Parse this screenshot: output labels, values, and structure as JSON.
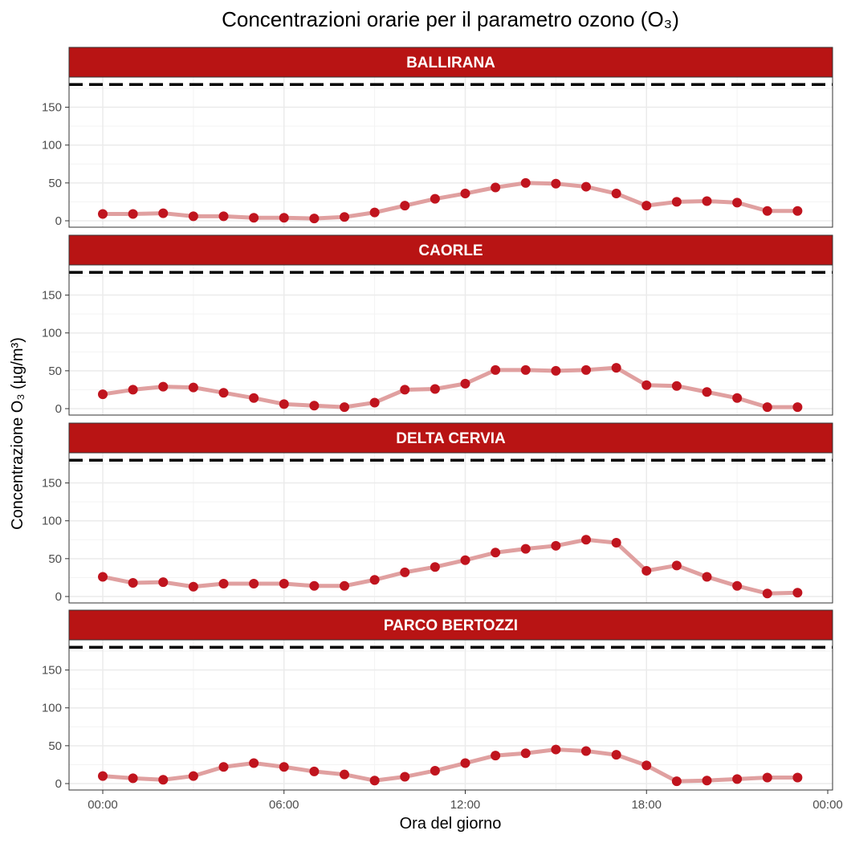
{
  "title": "Concentrazioni orarie per il parametro ozono (O₃)",
  "xlabel": "Ora del giorno",
  "ylabel": "Concentrazione O₃ (µg/m³)",
  "colors": {
    "strip": "#B81414",
    "strip_text": "#ffffff",
    "line": "#E0A0A0",
    "point": "#C0141E",
    "threshold": "#000000",
    "grid": "#EBEBEB",
    "border": "#333333"
  },
  "chart_data": {
    "type": "line",
    "facet_layout": "vertical",
    "x": [
      "00:00",
      "01:00",
      "02:00",
      "03:00",
      "04:00",
      "05:00",
      "06:00",
      "07:00",
      "08:00",
      "09:00",
      "10:00",
      "11:00",
      "12:00",
      "13:00",
      "14:00",
      "15:00",
      "16:00",
      "17:00",
      "18:00",
      "19:00",
      "20:00",
      "21:00",
      "22:00",
      "23:00"
    ],
    "x_ticks": [
      "00:00",
      "06:00",
      "12:00",
      "18:00",
      "00:00"
    ],
    "y_ticks": [
      0,
      50,
      100,
      150
    ],
    "ylim": [
      0,
      180
    ],
    "threshold": 180,
    "threshold_style": "dashed",
    "grid": true,
    "series": [
      {
        "name": "BALLIRANA",
        "values": [
          9,
          9,
          10,
          6,
          6,
          4,
          4,
          3,
          5,
          11,
          20,
          29,
          36,
          44,
          50,
          49,
          45,
          36,
          20,
          25,
          26,
          24,
          13,
          13
        ]
      },
      {
        "name": "CAORLE",
        "values": [
          19,
          25,
          29,
          28,
          21,
          14,
          6,
          4,
          2,
          8,
          25,
          26,
          33,
          51,
          51,
          50,
          51,
          54,
          31,
          30,
          22,
          14,
          2,
          2
        ]
      },
      {
        "name": "DELTA CERVIA",
        "values": [
          26,
          18,
          19,
          13,
          17,
          17,
          17,
          14,
          14,
          22,
          32,
          39,
          48,
          58,
          63,
          67,
          75,
          71,
          34,
          41,
          26,
          14,
          4,
          5
        ]
      },
      {
        "name": "PARCO BERTOZZI",
        "values": [
          10,
          7,
          5,
          10,
          22,
          27,
          22,
          16,
          12,
          4,
          9,
          17,
          27,
          37,
          40,
          45,
          43,
          38,
          24,
          3,
          4,
          6,
          8,
          8
        ]
      }
    ]
  }
}
